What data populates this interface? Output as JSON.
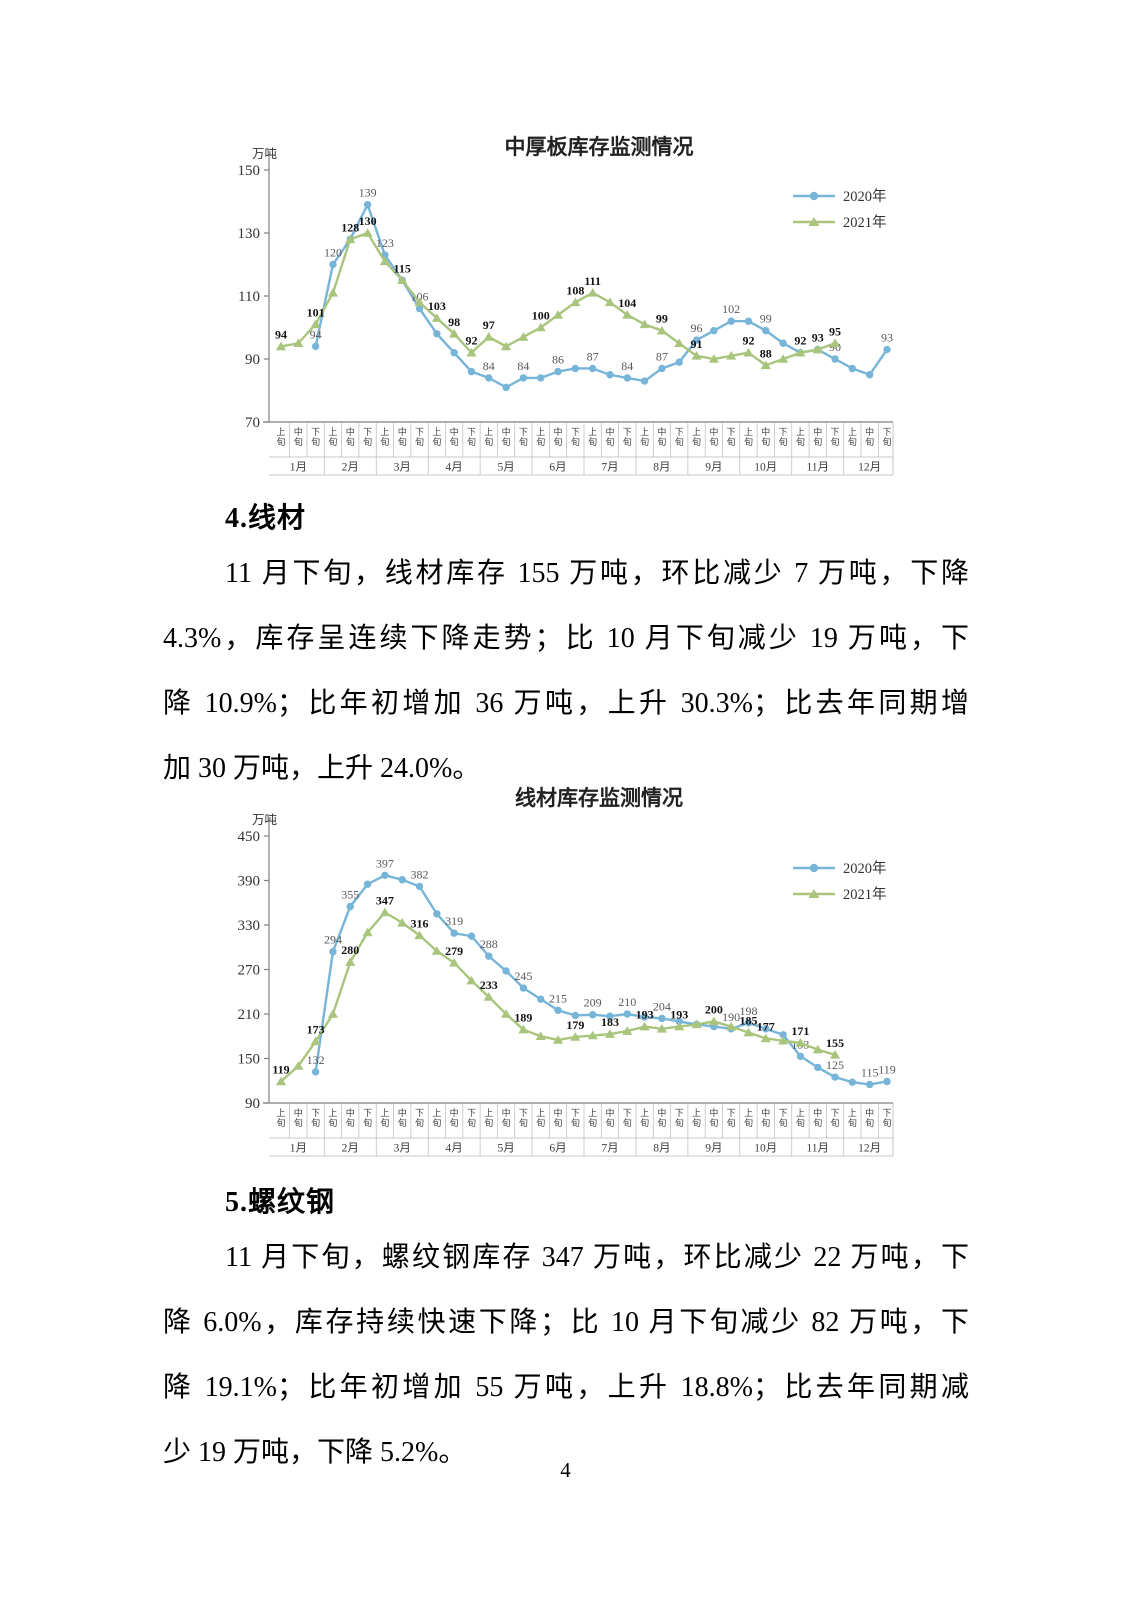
{
  "page": {
    "number": "4"
  },
  "sections": [
    {
      "heading": "4.线材",
      "lines": [
        "11 月下旬，线材库存 155 万吨，环比减少 7 万吨，下降",
        "4.3%，库存呈连续下降走势；比 10 月下旬减少 19 万吨，下",
        "降 10.9%；比年初增加 36 万吨，上升 30.3%；比去年同期增",
        "加 30 万吨，上升 24.0%。"
      ]
    },
    {
      "heading": "5.螺纹钢",
      "lines": [
        "11 月下旬，螺纹钢库存 347 万吨，环比减少 22 万吨，下",
        "降 6.0%，库存持续快速下降；比 10 月下旬减少 82 万吨，下",
        "降 19.1%；比年初增加 55 万吨，上升 18.8%；比去年同期减",
        "少 19 万吨，下降 5.2%。"
      ]
    }
  ],
  "chart_data": [
    {
      "type": "line",
      "title": "中厚板库存监测情况",
      "unit_label": "万吨",
      "ylim": [
        70,
        150
      ],
      "yticks": [
        150,
        130,
        110,
        90,
        70
      ],
      "grid": false,
      "legend_position": "right-top",
      "months": [
        "1月",
        "2月",
        "3月",
        "4月",
        "5月",
        "6月",
        "7月",
        "8月",
        "9月",
        "10月",
        "11月",
        "12月"
      ],
      "periods": [
        "上旬",
        "中旬",
        "下旬"
      ],
      "x_structure": "36 points = 12 months x 3 periods (上旬/中旬/下旬)",
      "series": [
        {
          "name": "2020年",
          "color": "#76b4d8",
          "marker": "circle",
          "label_color": "#595959",
          "label_bold": false,
          "values": [
            null,
            null,
            94,
            120,
            128,
            139,
            123,
            115,
            106,
            98,
            92,
            86,
            84,
            81,
            84,
            84,
            86,
            87,
            87,
            85,
            84,
            83,
            87,
            89,
            96,
            99,
            102,
            102,
            99,
            95,
            92,
            93,
            90,
            87,
            85,
            93
          ],
          "labels": {
            "2": "94",
            "3": "120",
            "5": "139",
            "6": "123",
            "8": "106",
            "12": "84",
            "14": "84",
            "16": "86",
            "18": "87",
            "20": "84",
            "22": "87",
            "24": "96",
            "26": "102",
            "28": "99",
            "32": "90",
            "35": "93"
          }
        },
        {
          "name": "2021年",
          "color": "#a9c57d",
          "marker": "triangle",
          "label_color": "#111111",
          "label_bold": true,
          "values": [
            94,
            95,
            101,
            111,
            128,
            130,
            121,
            115,
            108,
            103,
            98,
            92,
            97,
            94,
            97,
            100,
            104,
            108,
            111,
            108,
            104,
            101,
            99,
            95,
            91,
            90,
            91,
            92,
            88,
            90,
            92,
            93,
            95,
            null,
            null,
            null
          ],
          "labels": {
            "0": "94",
            "2": "101",
            "4": "128",
            "5": "130",
            "7": "115",
            "9": "103",
            "10": "98",
            "11": "92",
            "12": "97",
            "15": "100",
            "17": "108",
            "18": "111",
            "20": "104",
            "22": "99",
            "24": "91",
            "27": "92",
            "28": "88",
            "30": "92",
            "31": "93",
            "32": "95"
          }
        }
      ]
    },
    {
      "type": "line",
      "title": "线材库存监测情况",
      "unit_label": "万吨",
      "ylim": [
        90,
        450
      ],
      "yticks": [
        450,
        390,
        330,
        270,
        210,
        150,
        90
      ],
      "grid": false,
      "legend_position": "right-top",
      "months": [
        "1月",
        "2月",
        "3月",
        "4月",
        "5月",
        "6月",
        "7月",
        "8月",
        "9月",
        "10月",
        "11月",
        "12月"
      ],
      "periods": [
        "上旬",
        "中旬",
        "下旬"
      ],
      "x_structure": "36 points = 12 months x 3 periods (上旬/中旬/下旬)",
      "series": [
        {
          "name": "2020年",
          "color": "#76b4d8",
          "marker": "circle",
          "label_color": "#595959",
          "label_bold": false,
          "values": [
            null,
            null,
            132,
            294,
            355,
            385,
            397,
            391,
            382,
            345,
            319,
            315,
            288,
            268,
            245,
            230,
            215,
            208,
            209,
            207,
            210,
            206,
            204,
            200,
            196,
            193,
            190,
            198,
            190,
            182,
            153,
            138,
            125,
            118,
            115,
            119
          ],
          "labels": {
            "2": "132",
            "3": "294",
            "4": "355",
            "6": "397",
            "8": "382",
            "10": "319",
            "12": "288",
            "14": "245",
            "16": "215",
            "18": "209",
            "20": "210",
            "22": "204",
            "26": "190",
            "27": "198",
            "30": "153",
            "32": "125",
            "34": "115",
            "35": "119"
          }
        },
        {
          "name": "2021年",
          "color": "#a9c57d",
          "marker": "triangle",
          "label_color": "#111111",
          "label_bold": true,
          "values": [
            119,
            140,
            173,
            210,
            280,
            320,
            347,
            333,
            316,
            295,
            279,
            255,
            233,
            210,
            189,
            180,
            175,
            179,
            181,
            183,
            187,
            193,
            190,
            193,
            196,
            200,
            193,
            185,
            177,
            174,
            171,
            162,
            155,
            null,
            null,
            null
          ],
          "labels": {
            "0": "119",
            "2": "173",
            "4": "280",
            "6": "347",
            "8": "316",
            "10": "279",
            "12": "233",
            "14": "189",
            "17": "179",
            "19": "183",
            "21": "193",
            "23": "193",
            "25": "200",
            "27": "185",
            "28": "177",
            "30": "171",
            "32": "155"
          }
        }
      ]
    }
  ]
}
